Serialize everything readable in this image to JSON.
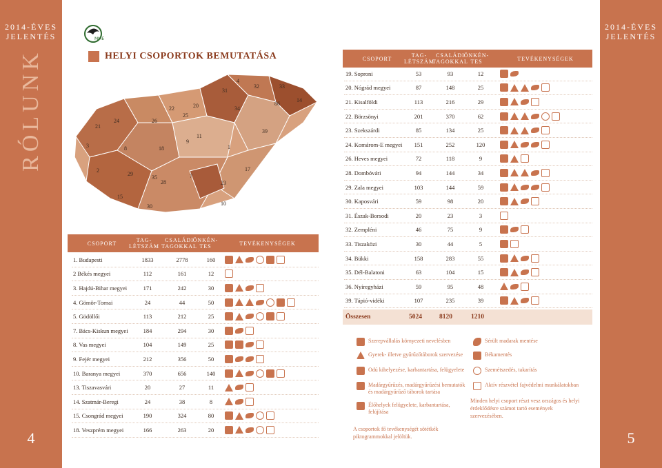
{
  "side": {
    "left_title": "2014-ÉVES\nJELENTÉS",
    "right_title": "2014-ÉVES\nJELENTÉS",
    "vertical": "RÓLUNK",
    "page_left": "4",
    "page_right": "5"
  },
  "section_title": "HELYI CSOPORTOK BEMUTATÁSA",
  "headers": {
    "group": "CSOPORT",
    "members": "TAG-\nLÉTSZÁM",
    "family": "CSALÁDI\nTAGOKKAL",
    "volunteers": "ÖNKÉN-\nTES",
    "activities": "TEVÉKENYSÉGEK"
  },
  "map_labels": [
    "4",
    "32",
    "31",
    "33",
    "86",
    "14",
    "20",
    "34",
    "22",
    "25",
    "26",
    "24",
    "21",
    "11",
    "39",
    "3",
    "8",
    "18",
    "9",
    "1",
    "17",
    "2",
    "29",
    "35",
    "7",
    "28",
    "23",
    "15",
    "30",
    "10"
  ],
  "left_rows": [
    {
      "name": "1. Budapesti",
      "m": "1833",
      "f": "2778",
      "v": "160",
      "icons": [
        "fill",
        "tri",
        "bird",
        "circ",
        "fill",
        "line"
      ]
    },
    {
      "name": "2 Békés megyei",
      "m": "112",
      "f": "161",
      "v": "12",
      "icons": [
        "line"
      ]
    },
    {
      "name": "3. Hajdú-Bihar megyei",
      "m": "171",
      "f": "242",
      "v": "30",
      "icons": [
        "fill",
        "tri",
        "bird",
        "line"
      ]
    },
    {
      "name": "4. Gömör-Tornai",
      "m": "24",
      "f": "44",
      "v": "50",
      "icons": [
        "fill",
        "tri",
        "tri",
        "bird",
        "circ",
        "fill",
        "line"
      ]
    },
    {
      "name": "5. Gödöllői",
      "m": "113",
      "f": "212",
      "v": "25",
      "icons": [
        "fill",
        "tri",
        "bird",
        "circ",
        "fill",
        "line"
      ]
    },
    {
      "name": "7. Bács-Kiskun megyei",
      "m": "184",
      "f": "294",
      "v": "30",
      "icons": [
        "fill",
        "bird",
        "line"
      ]
    },
    {
      "name": "8. Vas megyei",
      "m": "104",
      "f": "149",
      "v": "25",
      "icons": [
        "fill",
        "fill",
        "bird",
        "line"
      ]
    },
    {
      "name": "9. Fejér megyei",
      "m": "212",
      "f": "356",
      "v": "50",
      "icons": [
        "fill",
        "bird",
        "bird",
        "line"
      ]
    },
    {
      "name": "10. Baranya megyei",
      "m": "370",
      "f": "656",
      "v": "140",
      "icons": [
        "fill",
        "tri",
        "bird",
        "circ",
        "fill",
        "line"
      ]
    },
    {
      "name": "13. Tiszavasvári",
      "m": "20",
      "f": "27",
      "v": "11",
      "icons": [
        "tri",
        "bird",
        "line"
      ]
    },
    {
      "name": "14. Szatmár-Beregi",
      "m": "24",
      "f": "38",
      "v": "8",
      "icons": [
        "tri",
        "bird",
        "line"
      ]
    },
    {
      "name": "15. Csongrád megyei",
      "m": "190",
      "f": "324",
      "v": "80",
      "icons": [
        "fill",
        "tri",
        "bird",
        "circ",
        "line"
      ]
    },
    {
      "name": "18. Veszprém megyei",
      "m": "166",
      "f": "263",
      "v": "20",
      "icons": [
        "fill",
        "tri",
        "bird",
        "circ",
        "line"
      ]
    }
  ],
  "right_rows": [
    {
      "name": "19. Soproni",
      "m": "53",
      "f": "93",
      "v": "12",
      "icons": [
        "fill",
        "bird"
      ]
    },
    {
      "name": "20. Nógrád megyei",
      "m": "87",
      "f": "148",
      "v": "25",
      "icons": [
        "fill",
        "tri",
        "tri",
        "bird",
        "line"
      ]
    },
    {
      "name": "21. Kisalföldi",
      "m": "113",
      "f": "216",
      "v": "29",
      "icons": [
        "fill",
        "tri",
        "bird",
        "line"
      ]
    },
    {
      "name": "22. Börzsönyi",
      "m": "201",
      "f": "370",
      "v": "62",
      "icons": [
        "fill",
        "tri",
        "tri",
        "bird",
        "circ",
        "line"
      ]
    },
    {
      "name": "23. Szekszárdi",
      "m": "85",
      "f": "134",
      "v": "25",
      "icons": [
        "fill",
        "tri",
        "tri",
        "bird",
        "line"
      ]
    },
    {
      "name": "24. Komárom-E megyei",
      "m": "151",
      "f": "252",
      "v": "120",
      "icons": [
        "fill",
        "tri",
        "bird",
        "bird",
        "line"
      ]
    },
    {
      "name": "26. Heves megyei",
      "m": "72",
      "f": "118",
      "v": "9",
      "icons": [
        "fill",
        "tri",
        "line"
      ]
    },
    {
      "name": "28. Dombóvári",
      "m": "94",
      "f": "144",
      "v": "34",
      "icons": [
        "fill",
        "tri",
        "tri",
        "bird",
        "line"
      ]
    },
    {
      "name": "29. Zala megyei",
      "m": "103",
      "f": "144",
      "v": "59",
      "icons": [
        "fill",
        "tri",
        "bird",
        "bird",
        "line"
      ]
    },
    {
      "name": "30. Kaposvári",
      "m": "59",
      "f": "98",
      "v": "20",
      "icons": [
        "fill",
        "tri",
        "bird",
        "line"
      ]
    },
    {
      "name": "31. Észak-Borsodi",
      "m": "20",
      "f": "23",
      "v": "3",
      "icons": [
        "line"
      ]
    },
    {
      "name": "32. Zempléni",
      "m": "46",
      "f": "75",
      "v": "9",
      "icons": [
        "fill",
        "bird",
        "line"
      ]
    },
    {
      "name": "33. Tiszaközi",
      "m": "30",
      "f": "44",
      "v": "5",
      "icons": [
        "fill",
        "line"
      ]
    },
    {
      "name": "34. Bükki",
      "m": "158",
      "f": "283",
      "v": "55",
      "icons": [
        "fill",
        "tri",
        "bird",
        "line"
      ]
    },
    {
      "name": "35. Dél-Balatoni",
      "m": "63",
      "f": "104",
      "v": "15",
      "icons": [
        "fill",
        "tri",
        "bird",
        "line"
      ]
    },
    {
      "name": "36. Nyíregyházi",
      "m": "59",
      "f": "95",
      "v": "48",
      "icons": [
        "tri",
        "bird",
        "line"
      ]
    },
    {
      "name": "39. Tápió-vidéki",
      "m": "107",
      "f": "235",
      "v": "39",
      "icons": [
        "fill",
        "tri",
        "bird",
        "line"
      ]
    }
  ],
  "total": {
    "label": "Összesen",
    "m": "5024",
    "f": "8120",
    "v": "1210"
  },
  "legend": [
    {
      "text": "Szerepvállalás környezeti nevelésben"
    },
    {
      "text": "Sérült madarak mentése"
    },
    {
      "text": "Gyerek- illetve gyűrűzőtáborok szervezése"
    },
    {
      "text": "Békamentés"
    },
    {
      "text": "Odú kihelyezése, karbantartása, felügyelete"
    },
    {
      "text": "Szemétszedés, takarítás"
    },
    {
      "text": "Madárgyűrűzés, madárgyűrűzési bemutatók és madárgyűrűző táborok tartása"
    },
    {
      "text": "Aktív részvétel fajvédelmi munkálatokban"
    },
    {
      "text": "Élőhelyek felügyelete, karbantartása, felújítása"
    }
  ],
  "note_right": "Minden helyi csoport részt vesz országos és helyi érdeklődésre számot tartó események szervezésében.",
  "note_bottom": "A csoportok fő tevékenységét sötétkék piktogrammokkal jelöltük."
}
